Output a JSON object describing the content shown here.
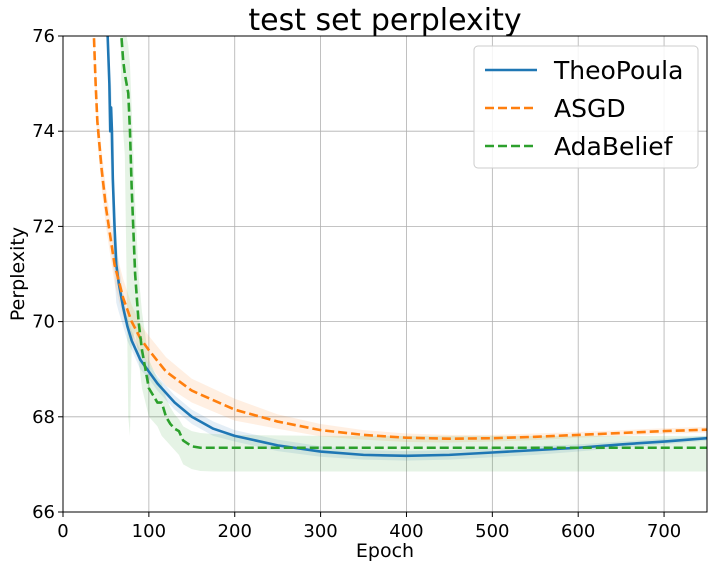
{
  "chart_data": {
    "type": "line",
    "title": "test set perplexity",
    "xlabel": "Epoch",
    "ylabel": "Perplexity",
    "xlim": [
      0,
      750
    ],
    "ylim": [
      66,
      76
    ],
    "xticks": [
      0,
      100,
      200,
      300,
      400,
      500,
      600,
      700
    ],
    "yticks": [
      66,
      68,
      70,
      72,
      74,
      76
    ],
    "grid": true,
    "legend_position": "top-right",
    "series": [
      {
        "name": "TheoPoula",
        "color": "#1f77b4",
        "style": "solid",
        "x": [
          50,
          52,
          54,
          55,
          56,
          57,
          58,
          60,
          62,
          65,
          70,
          75,
          80,
          90,
          100,
          110,
          120,
          130,
          140,
          150,
          175,
          200,
          250,
          300,
          350,
          400,
          450,
          500,
          550,
          600,
          650,
          700,
          750
        ],
        "y": [
          76.5,
          76.0,
          75.0,
          74.0,
          74.5,
          74.0,
          73.0,
          72.0,
          71.2,
          70.8,
          70.3,
          69.9,
          69.6,
          69.2,
          68.95,
          68.7,
          68.5,
          68.3,
          68.15,
          68.0,
          67.75,
          67.6,
          67.4,
          67.27,
          67.2,
          67.18,
          67.2,
          67.25,
          67.3,
          67.35,
          67.42,
          67.48,
          67.55
        ],
        "band_upper": [
          76.5,
          76.2,
          75.5,
          74.8,
          75.0,
          74.6,
          73.8,
          72.8,
          71.8,
          71.2,
          70.6,
          70.1,
          69.8,
          69.4,
          69.1,
          68.85,
          68.65,
          68.45,
          68.3,
          68.15,
          67.9,
          67.72,
          67.52,
          67.38,
          67.3,
          67.28,
          67.3,
          67.34,
          67.38,
          67.42,
          67.48,
          67.54,
          67.6
        ],
        "band_lower": [
          76.5,
          75.8,
          74.5,
          73.2,
          73.8,
          73.2,
          71.2,
          71.0,
          70.4,
          70.2,
          69.9,
          69.6,
          69.4,
          69.0,
          68.8,
          68.55,
          68.35,
          68.15,
          68.0,
          67.85,
          67.6,
          67.48,
          67.28,
          67.16,
          67.1,
          67.08,
          67.1,
          67.15,
          67.2,
          67.27,
          67.35,
          67.42,
          67.5
        ]
      },
      {
        "name": "ASGD",
        "color": "#ff7f0e",
        "style": "dashed",
        "x": [
          35,
          38,
          40,
          45,
          50,
          55,
          60,
          70,
          80,
          90,
          100,
          120,
          150,
          200,
          250,
          300,
          350,
          400,
          450,
          500,
          550,
          600,
          650,
          700,
          750
        ],
        "y": [
          76.5,
          75.0,
          74.2,
          73.2,
          72.4,
          71.8,
          71.2,
          70.5,
          70.0,
          69.65,
          69.4,
          68.95,
          68.55,
          68.15,
          67.9,
          67.72,
          67.62,
          67.56,
          67.54,
          67.55,
          67.58,
          67.62,
          67.66,
          67.7,
          67.73
        ],
        "band_upper": [
          76.5,
          75.4,
          74.6,
          73.6,
          72.8,
          72.2,
          71.6,
          70.9,
          70.35,
          69.95,
          69.7,
          69.25,
          68.8,
          68.38,
          68.05,
          67.85,
          67.72,
          67.65,
          67.62,
          67.62,
          67.65,
          67.68,
          67.72,
          67.76,
          67.79
        ],
        "band_lower": [
          76.5,
          74.6,
          73.8,
          72.8,
          72.0,
          71.4,
          70.8,
          70.1,
          69.65,
          69.35,
          69.1,
          68.65,
          68.3,
          67.92,
          67.75,
          67.59,
          67.52,
          67.47,
          67.46,
          67.48,
          67.51,
          67.56,
          67.6,
          67.64,
          67.67
        ]
      },
      {
        "name": "AdaBelief",
        "color": "#2ca02c",
        "style": "dashed",
        "x": [
          66,
          68,
          70,
          72,
          74,
          76,
          78,
          80,
          84,
          88,
          92,
          96,
          100,
          105,
          110,
          115,
          120,
          125,
          130,
          135,
          140,
          150,
          160,
          175,
          200,
          300,
          400,
          500,
          600,
          700,
          750
        ],
        "y": [
          76.5,
          76.0,
          75.5,
          75.2,
          75.0,
          74.8,
          74.0,
          72.8,
          71.0,
          70.0,
          69.4,
          69.0,
          68.6,
          68.45,
          68.3,
          68.3,
          68.0,
          67.85,
          67.75,
          67.7,
          67.5,
          67.38,
          67.35,
          67.35,
          67.35,
          67.35,
          67.35,
          67.35,
          67.35,
          67.35,
          67.35
        ],
        "band_upper": [
          76.5,
          76.5,
          76.4,
          76.2,
          76.0,
          75.8,
          75.4,
          74.5,
          72.5,
          71.0,
          70.2,
          69.7,
          69.2,
          69.0,
          68.8,
          68.7,
          68.4,
          68.2,
          68.05,
          67.95,
          67.8,
          67.7,
          67.66,
          67.64,
          67.62,
          67.6,
          67.6,
          67.6,
          67.6,
          67.6,
          67.6
        ],
        "band_lower": [
          76.5,
          75.0,
          74.0,
          73.5,
          71.0,
          68.0,
          67.6,
          69.5,
          69.8,
          69.2,
          68.6,
          68.3,
          68.0,
          67.9,
          67.8,
          67.6,
          67.5,
          67.4,
          67.3,
          67.2,
          67.0,
          66.9,
          66.86,
          66.85,
          66.85,
          66.85,
          66.85,
          66.85,
          66.85,
          66.85,
          66.85
        ]
      }
    ]
  }
}
